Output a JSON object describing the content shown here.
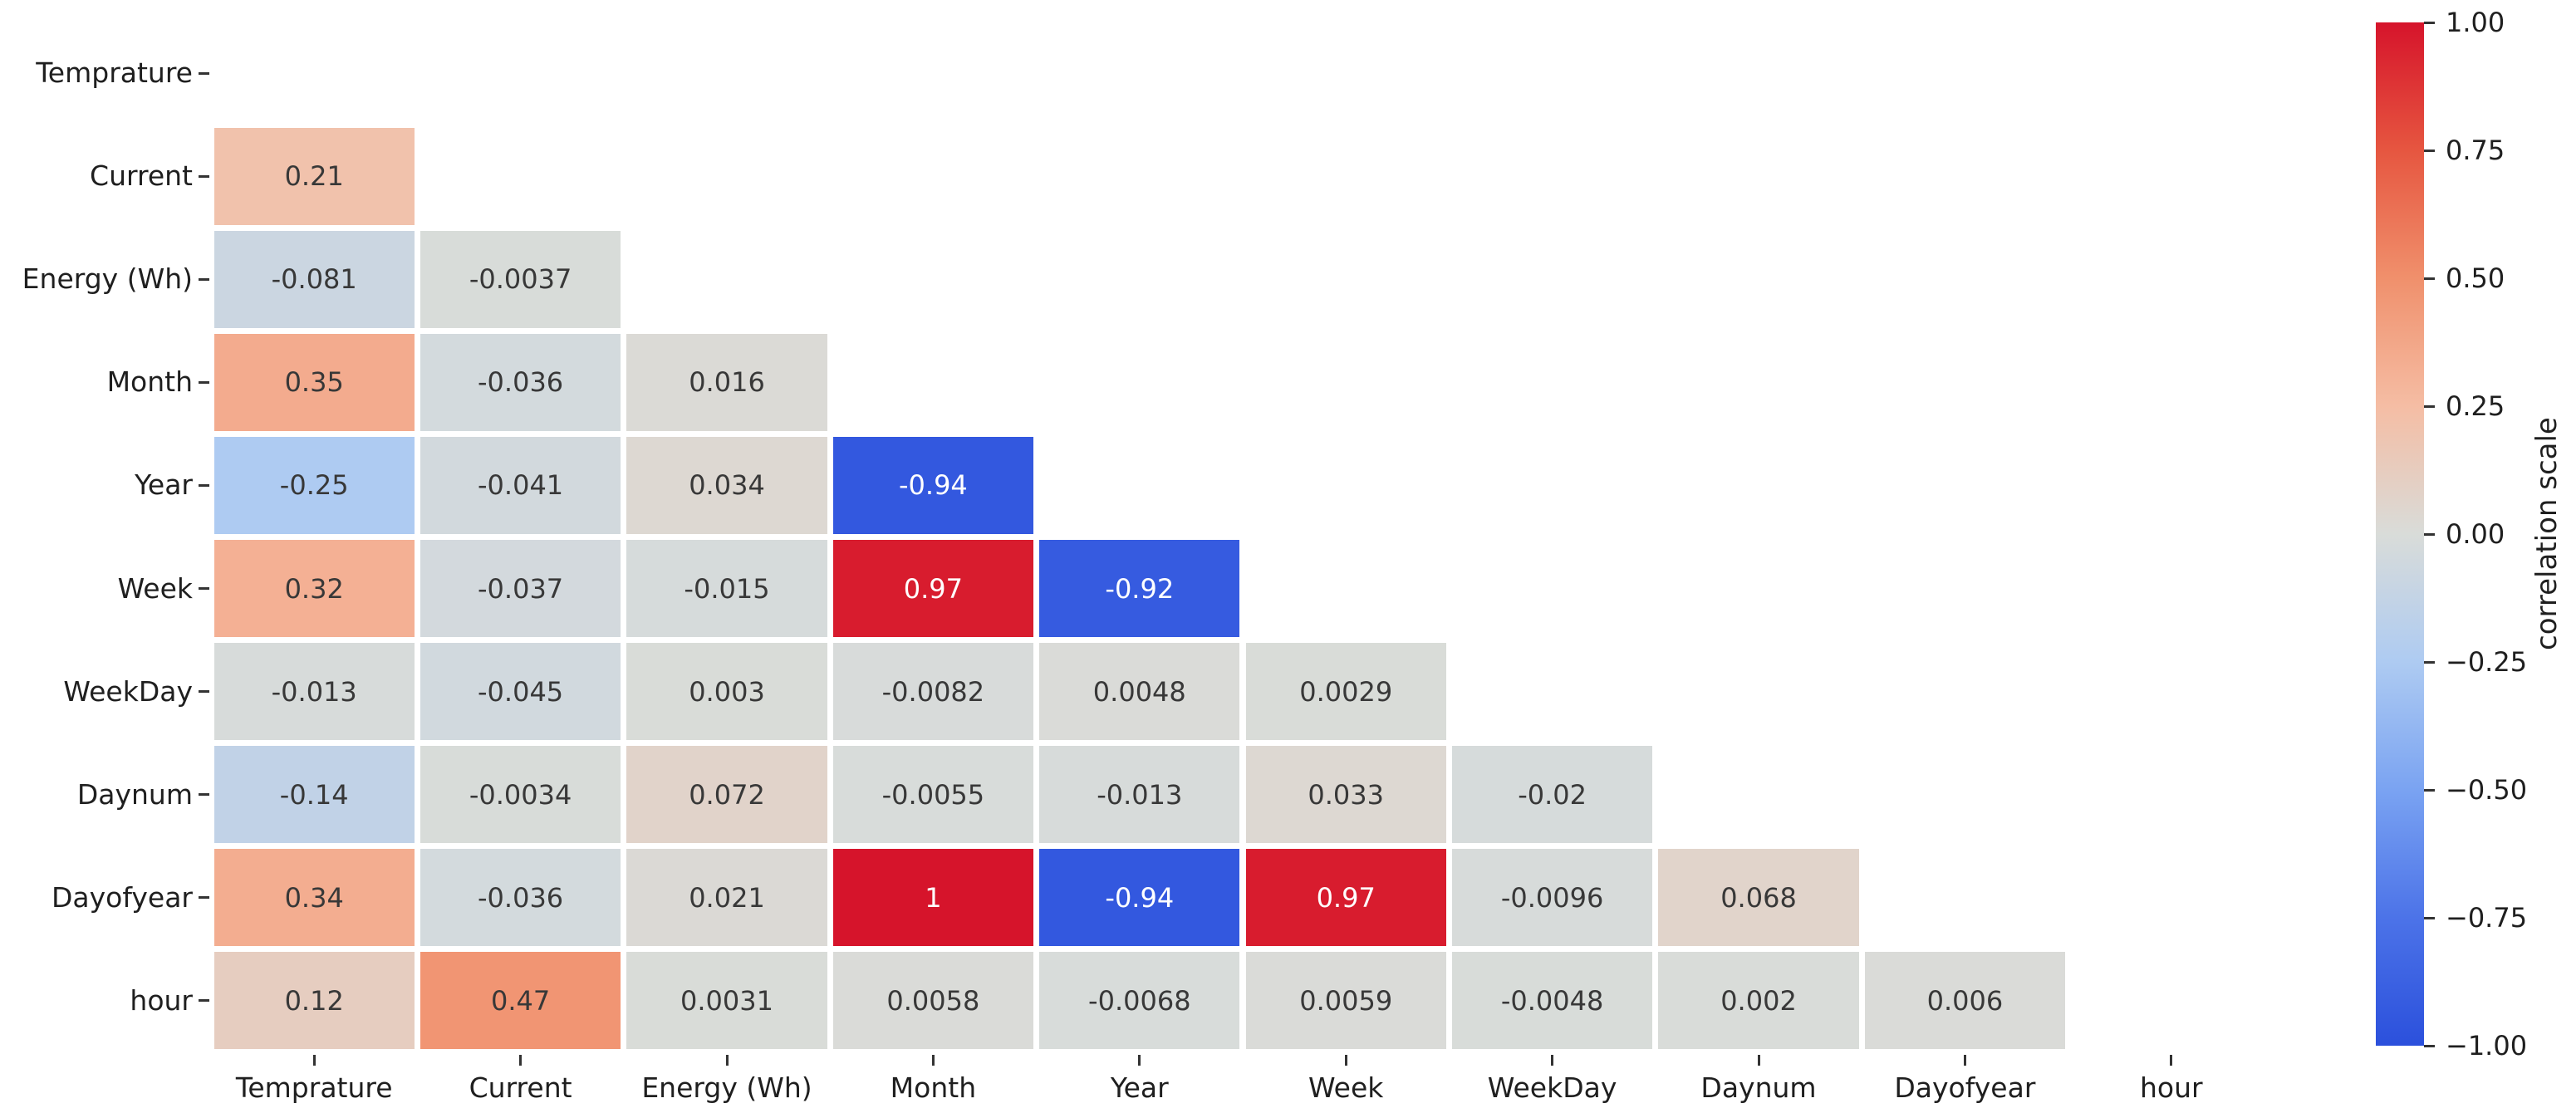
{
  "chart_data": {
    "type": "heatmap",
    "title": "",
    "description": "Lower-triangular correlation matrix heatmap (diagonal and upper triangle masked)",
    "variables": [
      "Temprature",
      "Current",
      "Energy (Wh)",
      "Month",
      "Year",
      "Week",
      "WeekDay",
      "Daynum",
      "Dayofyear",
      "hour"
    ],
    "rows": [
      {
        "name": "Temprature",
        "values": []
      },
      {
        "name": "Current",
        "values": [
          "0.21"
        ]
      },
      {
        "name": "Energy (Wh)",
        "values": [
          "-0.081",
          "-0.0037"
        ]
      },
      {
        "name": "Month",
        "values": [
          "0.35",
          "-0.036",
          "0.016"
        ]
      },
      {
        "name": "Year",
        "values": [
          "-0.25",
          "-0.041",
          "0.034",
          "-0.94"
        ]
      },
      {
        "name": "Week",
        "values": [
          "0.32",
          "-0.037",
          "-0.015",
          "0.97",
          "-0.92"
        ]
      },
      {
        "name": "WeekDay",
        "values": [
          "-0.013",
          "-0.045",
          "0.003",
          "-0.0082",
          "0.0048",
          "0.0029"
        ]
      },
      {
        "name": "Daynum",
        "values": [
          "-0.14",
          "-0.0034",
          "0.072",
          "-0.0055",
          "-0.013",
          "0.033",
          "-0.02"
        ]
      },
      {
        "name": "Dayofyear",
        "values": [
          "0.34",
          "-0.036",
          "0.021",
          "1",
          "-0.94",
          "0.97",
          "-0.0096",
          "0.068"
        ]
      },
      {
        "name": "hour",
        "values": [
          "0.12",
          "0.47",
          "0.0031",
          "0.0058",
          "-0.0068",
          "0.0059",
          "-0.0048",
          "0.002",
          "0.006"
        ]
      }
    ],
    "colorbar": {
      "label": "correlation scale",
      "ticks": [
        "1.00",
        "0.75",
        "0.50",
        "0.25",
        "0.00",
        "−0.25",
        "−0.50",
        "−0.75",
        "−1.00"
      ],
      "vmin": -1.0,
      "vmax": 1.0
    },
    "colormap_stops": [
      {
        "v": -1.0,
        "color": "#2b50dc"
      },
      {
        "v": -0.75,
        "color": "#4c73e8"
      },
      {
        "v": -0.5,
        "color": "#7aa3f2"
      },
      {
        "v": -0.25,
        "color": "#aecbf2"
      },
      {
        "v": 0.0,
        "color": "#d9dcd9"
      },
      {
        "v": 0.25,
        "color": "#f5bda4"
      },
      {
        "v": 0.5,
        "color": "#f0906c"
      },
      {
        "v": 0.75,
        "color": "#e65640"
      },
      {
        "v": 1.0,
        "color": "#d6142b"
      }
    ],
    "annotation_text_color_dark": "#383838",
    "annotation_text_color_light": "#ffffff",
    "tick_color": "#333333",
    "background_color": "#ffffff"
  }
}
